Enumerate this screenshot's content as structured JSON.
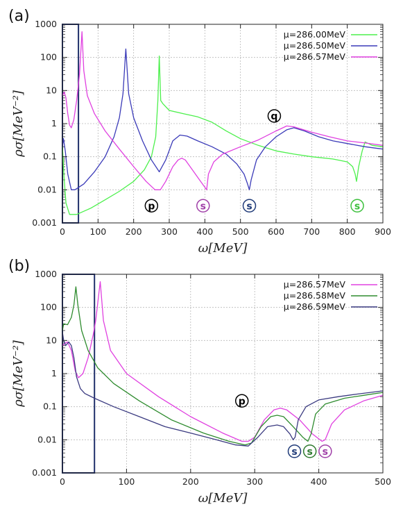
{
  "chart_data": [
    {
      "panel": "(a)",
      "type": "line",
      "title": "",
      "xlabel": "ω[MeV]",
      "ylabel": "ρσ[MeV⁻²]",
      "xlim": [
        0,
        900
      ],
      "ylim": [
        0.001,
        1000
      ],
      "yscale": "log",
      "grid": true,
      "legend": "top-right",
      "xticks": [
        "0",
        "100",
        "200",
        "300",
        "400",
        "500",
        "600",
        "700",
        "800",
        "900"
      ],
      "yticks": [
        "0.001",
        "0.01",
        "0.1",
        "1",
        "10",
        "100",
        "1000"
      ],
      "highlight_box": {
        "x": [
          0,
          45
        ],
        "y": [
          0.001,
          1000
        ]
      },
      "series": [
        {
          "name": "μ=286.00MeV",
          "color": "#4cf04c",
          "points": [
            [
              0,
              0.2
            ],
            [
              5,
              0.02
            ],
            [
              10,
              0.004
            ],
            [
              20,
              0.0018
            ],
            [
              40,
              0.0018
            ],
            [
              80,
              0.0028
            ],
            [
              120,
              0.005
            ],
            [
              160,
              0.009
            ],
            [
              200,
              0.018
            ],
            [
              230,
              0.04
            ],
            [
              250,
              0.1
            ],
            [
              262,
              0.4
            ],
            [
              268,
              5
            ],
            [
              272,
              110
            ],
            [
              276,
              5
            ],
            [
              282,
              4
            ],
            [
              300,
              2.5
            ],
            [
              340,
              2
            ],
            [
              380,
              1.6
            ],
            [
              420,
              1.1
            ],
            [
              460,
              0.6
            ],
            [
              500,
              0.35
            ],
            [
              550,
              0.22
            ],
            [
              600,
              0.15
            ],
            [
              650,
              0.12
            ],
            [
              700,
              0.1
            ],
            [
              760,
              0.085
            ],
            [
              800,
              0.07
            ],
            [
              815,
              0.05
            ],
            [
              822,
              0.03
            ],
            [
              826,
              0.018
            ],
            [
              832,
              0.05
            ],
            [
              842,
              0.15
            ],
            [
              850,
              0.28
            ],
            [
              870,
              0.22
            ],
            [
              900,
              0.2
            ]
          ]
        },
        {
          "name": "μ=286.50MeV",
          "color": "#3a3ab8",
          "points": [
            [
              0,
              0.2
            ],
            [
              3,
              0.35
            ],
            [
              8,
              0.15
            ],
            [
              15,
              0.03
            ],
            [
              25,
              0.01
            ],
            [
              35,
              0.01
            ],
            [
              60,
              0.015
            ],
            [
              90,
              0.035
            ],
            [
              120,
              0.1
            ],
            [
              145,
              0.4
            ],
            [
              160,
              1.5
            ],
            [
              170,
              8
            ],
            [
              178,
              180
            ],
            [
              186,
              8
            ],
            [
              200,
              1.5
            ],
            [
              225,
              0.3
            ],
            [
              250,
              0.08
            ],
            [
              272,
              0.035
            ],
            [
              290,
              0.08
            ],
            [
              310,
              0.3
            ],
            [
              330,
              0.45
            ],
            [
              350,
              0.42
            ],
            [
              380,
              0.3
            ],
            [
              420,
              0.2
            ],
            [
              460,
              0.12
            ],
            [
              490,
              0.06
            ],
            [
              510,
              0.03
            ],
            [
              520,
              0.015
            ],
            [
              525,
              0.01
            ],
            [
              530,
              0.02
            ],
            [
              545,
              0.08
            ],
            [
              570,
              0.2
            ],
            [
              600,
              0.4
            ],
            [
              630,
              0.65
            ],
            [
              650,
              0.75
            ],
            [
              680,
              0.6
            ],
            [
              720,
              0.4
            ],
            [
              760,
              0.3
            ],
            [
              800,
              0.25
            ],
            [
              850,
              0.2
            ],
            [
              900,
              0.17
            ]
          ]
        },
        {
          "name": "μ=286.57MeV",
          "color": "#e040e0",
          "points": [
            [
              0,
              7
            ],
            [
              5,
              9
            ],
            [
              10,
              6
            ],
            [
              15,
              2
            ],
            [
              20,
              0.9
            ],
            [
              25,
              0.75
            ],
            [
              32,
              1.3
            ],
            [
              40,
              5
            ],
            [
              48,
              30
            ],
            [
              55,
              600
            ],
            [
              60,
              40
            ],
            [
              70,
              7
            ],
            [
              90,
              2
            ],
            [
              120,
              0.6
            ],
            [
              160,
              0.17
            ],
            [
              200,
              0.05
            ],
            [
              235,
              0.018
            ],
            [
              260,
              0.01
            ],
            [
              275,
              0.01
            ],
            [
              290,
              0.018
            ],
            [
              310,
              0.05
            ],
            [
              325,
              0.08
            ],
            [
              335,
              0.09
            ],
            [
              345,
              0.08
            ],
            [
              365,
              0.04
            ],
            [
              385,
              0.02
            ],
            [
              400,
              0.012
            ],
            [
              405,
              0.01
            ],
            [
              410,
              0.03
            ],
            [
              425,
              0.07
            ],
            [
              450,
              0.12
            ],
            [
              500,
              0.2
            ],
            [
              550,
              0.32
            ],
            [
              600,
              0.6
            ],
            [
              630,
              0.85
            ],
            [
              650,
              0.8
            ],
            [
              700,
              0.55
            ],
            [
              750,
              0.4
            ],
            [
              800,
              0.3
            ],
            [
              850,
              0.26
            ],
            [
              900,
              0.22
            ]
          ]
        }
      ],
      "markers": [
        {
          "letter": "p",
          "x": 250,
          "y": 0.0033,
          "color": "#000000"
        },
        {
          "letter": "s",
          "x": 395,
          "y": 0.0033,
          "color": "#a040a8"
        },
        {
          "letter": "s",
          "x": 525,
          "y": 0.0033,
          "color": "#1f3a78"
        },
        {
          "letter": "q",
          "x": 595,
          "y": 1.7,
          "color": "#000000"
        },
        {
          "letter": "s",
          "x": 828,
          "y": 0.0033,
          "color": "#3cc03c"
        }
      ]
    },
    {
      "panel": "(b)",
      "type": "line",
      "title": "",
      "xlabel": "ω[MeV]",
      "ylabel": "ρσ[MeV⁻²]",
      "xlim": [
        0,
        500
      ],
      "ylim": [
        0.001,
        1000
      ],
      "yscale": "log",
      "grid": true,
      "legend": "top-right",
      "xticks": [
        "0",
        "100",
        "200",
        "300",
        "400",
        "500"
      ],
      "yticks": [
        "0.001",
        "0.01",
        "0.1",
        "1",
        "10",
        "100",
        "1000"
      ],
      "highlight_box": {
        "x": [
          0,
          50
        ],
        "y": [
          0.001,
          1000
        ]
      },
      "series": [
        {
          "name": "μ=286.57MeV",
          "color": "#e040e0",
          "points": [
            [
              0,
              7
            ],
            [
              3,
              8
            ],
            [
              8,
              9
            ],
            [
              14,
              5
            ],
            [
              20,
              1.2
            ],
            [
              25,
              0.75
            ],
            [
              32,
              1
            ],
            [
              40,
              3
            ],
            [
              48,
              15
            ],
            [
              52,
              40
            ],
            [
              59,
              600
            ],
            [
              64,
              40
            ],
            [
              75,
              5
            ],
            [
              100,
              1
            ],
            [
              150,
              0.2
            ],
            [
              200,
              0.05
            ],
            [
              250,
              0.016
            ],
            [
              280,
              0.009
            ],
            [
              290,
              0.009
            ],
            [
              300,
              0.012
            ],
            [
              315,
              0.04
            ],
            [
              330,
              0.08
            ],
            [
              340,
              0.09
            ],
            [
              350,
              0.08
            ],
            [
              370,
              0.04
            ],
            [
              390,
              0.015
            ],
            [
              405,
              0.009
            ],
            [
              410,
              0.01
            ],
            [
              420,
              0.03
            ],
            [
              440,
              0.08
            ],
            [
              470,
              0.15
            ],
            [
              500,
              0.22
            ]
          ]
        },
        {
          "name": "μ=286.58MeV",
          "color": "#2e8b2e",
          "points": [
            [
              0,
              20
            ],
            [
              2,
              32
            ],
            [
              8,
              30
            ],
            [
              14,
              50
            ],
            [
              18,
              120
            ],
            [
              21,
              420
            ],
            [
              24,
              120
            ],
            [
              30,
              20
            ],
            [
              40,
              5
            ],
            [
              55,
              1.5
            ],
            [
              80,
              0.5
            ],
            [
              120,
              0.15
            ],
            [
              170,
              0.04
            ],
            [
              220,
              0.016
            ],
            [
              260,
              0.009
            ],
            [
              285,
              0.007
            ],
            [
              295,
              0.008
            ],
            [
              310,
              0.025
            ],
            [
              325,
              0.05
            ],
            [
              335,
              0.055
            ],
            [
              345,
              0.05
            ],
            [
              360,
              0.025
            ],
            [
              375,
              0.012
            ],
            [
              383,
              0.009
            ],
            [
              388,
              0.015
            ],
            [
              395,
              0.06
            ],
            [
              410,
              0.12
            ],
            [
              440,
              0.18
            ],
            [
              470,
              0.22
            ],
            [
              500,
              0.27
            ]
          ]
        },
        {
          "name": "μ=286.59MeV",
          "color": "#3a3a80",
          "points": [
            [
              0,
              18
            ],
            [
              2,
              10
            ],
            [
              5,
              7
            ],
            [
              10,
              9
            ],
            [
              14,
              7
            ],
            [
              18,
              3
            ],
            [
              22,
              0.8
            ],
            [
              28,
              0.35
            ],
            [
              35,
              0.25
            ],
            [
              50,
              0.18
            ],
            [
              80,
              0.1
            ],
            [
              120,
              0.05
            ],
            [
              160,
              0.025
            ],
            [
              200,
              0.016
            ],
            [
              240,
              0.01
            ],
            [
              270,
              0.007
            ],
            [
              290,
              0.0065
            ],
            [
              305,
              0.012
            ],
            [
              320,
              0.025
            ],
            [
              335,
              0.028
            ],
            [
              345,
              0.025
            ],
            [
              355,
              0.015
            ],
            [
              360,
              0.01
            ],
            [
              363,
              0.012
            ],
            [
              368,
              0.04
            ],
            [
              380,
              0.1
            ],
            [
              400,
              0.16
            ],
            [
              430,
              0.2
            ],
            [
              460,
              0.24
            ],
            [
              500,
              0.3
            ]
          ]
        }
      ],
      "markers": [
        {
          "letter": "p",
          "x": 280,
          "y": 0.15,
          "color": "#000000"
        },
        {
          "letter": "s",
          "x": 362,
          "y": 0.0045,
          "color": "#1f3a78"
        },
        {
          "letter": "s",
          "x": 386,
          "y": 0.0045,
          "color": "#2e7a2e"
        },
        {
          "letter": "s",
          "x": 410,
          "y": 0.0045,
          "color": "#a040a8"
        }
      ]
    }
  ]
}
